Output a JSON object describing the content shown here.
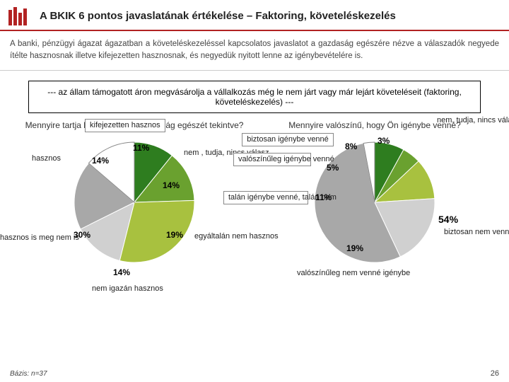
{
  "header": {
    "title": "A BKIK 6 pontos javaslatának értékelése – Faktoring, követeléskezelés"
  },
  "description": "A banki, pénzügyi ágazat ágazatban a követeléskezeléssel kapcsolatos  javaslatot a gazdaság egészére nézve a válaszadók negyede ítélte hasznosnak illetve kifejezetten hasznosnak, és negyedük nyitott lenne az igénybevételére is.",
  "box_text": "--- az állam támogatott áron megvásárolja a vállalkozás még le nem járt vagy már lejárt követeléseit (faktoring, követeléskezelés) ---",
  "chart_left": {
    "question": "Mennyire tartja hasznosnak a gazdaság egészét tekintve?",
    "type": "pie",
    "background_color": "#ffffff",
    "label_fontsize": 11,
    "pct_fontsize": 12,
    "slices": [
      {
        "label": "kifejezetten hasznos",
        "value": 11,
        "pct": "11%",
        "color": "#2e7d1f",
        "boxed": true
      },
      {
        "label": "hasznos",
        "value": 14,
        "pct": "14%",
        "color": "#6aa12f"
      },
      {
        "label": "hasznos is meg nem is",
        "value": 30,
        "pct": "30%",
        "color": "#a8c13f"
      },
      {
        "label": "nem igazán hasznos",
        "value": 14,
        "pct": "14%",
        "color": "#d0d0d0"
      },
      {
        "label": "egyáltalán nem hasznos",
        "value": 19,
        "pct": "19%",
        "color": "#a8a8a8"
      },
      {
        "label": "nem , tudja, nincs válasz",
        "value": 14,
        "pct": "14%",
        "color": "#ffffff",
        "stroke": "#888"
      }
    ]
  },
  "chart_right": {
    "question": "Mennyire valószínű, hogy Ön igénybe venné?",
    "type": "pie",
    "background_color": "#ffffff",
    "label_fontsize": 11,
    "pct_fontsize": 12,
    "slices": [
      {
        "label": "biztosan igénybe venné",
        "value": 8,
        "pct": "8%",
        "color": "#2e7d1f",
        "boxed": true
      },
      {
        "label": "valószínűleg igénybe venné",
        "value": 5,
        "pct": "5%",
        "color": "#6aa12f",
        "boxed": true
      },
      {
        "label": "talán igénybe venné, talán nem",
        "value": 11,
        "pct": "11%",
        "color": "#a8c13f",
        "boxed": true
      },
      {
        "label": "valószínűleg nem venné igénybe",
        "value": 19,
        "pct": "19%",
        "color": "#d0d0d0"
      },
      {
        "label": "biztosan nem venné igénybe",
        "value": 54,
        "pct": "54%",
        "color": "#a8a8a8"
      },
      {
        "label": "nem, tudja, nincs válasz",
        "value": 3,
        "pct": "3%",
        "color": "#ffffff",
        "stroke": "#888"
      }
    ]
  },
  "footer": "Bázis: n=37",
  "page_number": "26"
}
